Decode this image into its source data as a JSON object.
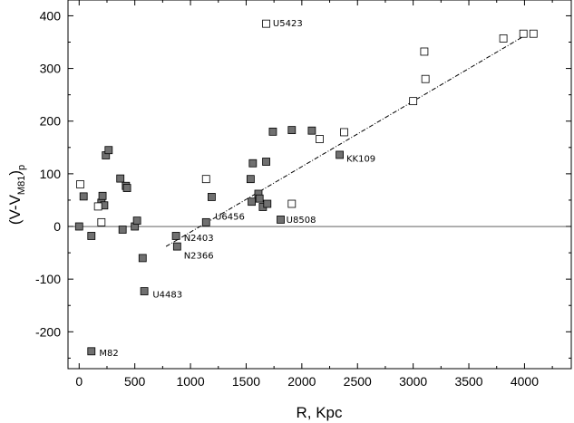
{
  "chart_data": {
    "type": "scatter",
    "title": "",
    "xlabel": "R, Kpc",
    "ylabel": {
      "main": "(V-V",
      "sub": "M81",
      "close": ")",
      "sub2": "p"
    },
    "xlim": [
      -100,
      4420
    ],
    "ylim": [
      -270,
      430
    ],
    "xticks": [
      0,
      500,
      1000,
      1500,
      2000,
      2500,
      3000,
      3500,
      4000
    ],
    "yticks": [
      -200,
      -100,
      0,
      100,
      200,
      300,
      400
    ],
    "grid": false,
    "legend": "none",
    "colors": {
      "filled": "#707070",
      "open": "#ffffff",
      "stroke": "#000000"
    },
    "series": [
      {
        "marker": "filled-square",
        "points": [
          {
            "x": 0,
            "y": 0
          },
          {
            "x": 40,
            "y": 57
          },
          {
            "x": 110,
            "y": -18
          },
          {
            "x": 200,
            "y": 45
          },
          {
            "x": 210,
            "y": 58
          },
          {
            "x": 225,
            "y": 40
          },
          {
            "x": 240,
            "y": 135
          },
          {
            "x": 265,
            "y": 145
          },
          {
            "x": 370,
            "y": 91
          },
          {
            "x": 390,
            "y": -6
          },
          {
            "x": 420,
            "y": 77
          },
          {
            "x": 430,
            "y": 73
          },
          {
            "x": 500,
            "y": 0
          },
          {
            "x": 520,
            "y": 11
          },
          {
            "x": 570,
            "y": -60
          },
          {
            "x": 585,
            "y": -123
          },
          {
            "x": 870,
            "y": -18
          },
          {
            "x": 880,
            "y": -38
          },
          {
            "x": 1140,
            "y": 8
          },
          {
            "x": 1190,
            "y": 56
          },
          {
            "x": 1540,
            "y": 90
          },
          {
            "x": 1550,
            "y": 47
          },
          {
            "x": 1560,
            "y": 120
          },
          {
            "x": 1610,
            "y": 62
          },
          {
            "x": 1620,
            "y": 53
          },
          {
            "x": 1650,
            "y": 37
          },
          {
            "x": 1680,
            "y": 123
          },
          {
            "x": 1690,
            "y": 43
          },
          {
            "x": 1740,
            "y": 180
          },
          {
            "x": 1810,
            "y": 13
          },
          {
            "x": 1910,
            "y": 183
          },
          {
            "x": 2090,
            "y": 182
          },
          {
            "x": 2340,
            "y": 136
          },
          {
            "x": 110,
            "y": -237
          }
        ]
      },
      {
        "marker": "open-square",
        "points": [
          {
            "x": 10,
            "y": 80
          },
          {
            "x": 170,
            "y": 38
          },
          {
            "x": 200,
            "y": 8
          },
          {
            "x": 1140,
            "y": 90
          },
          {
            "x": 1680,
            "y": 385
          },
          {
            "x": 1910,
            "y": 43
          },
          {
            "x": 2160,
            "y": 166
          },
          {
            "x": 2380,
            "y": 179
          },
          {
            "x": 3000,
            "y": 238
          },
          {
            "x": 3100,
            "y": 332
          },
          {
            "x": 3110,
            "y": 280
          },
          {
            "x": 3810,
            "y": 357
          },
          {
            "x": 3990,
            "y": 366
          },
          {
            "x": 4080,
            "y": 366
          }
        ]
      }
    ],
    "fit_line": {
      "x": [
        780,
        4000
      ],
      "y": [
        -38,
        362
      ]
    },
    "zero_line": 0,
    "annotations": [
      {
        "text": "U5423",
        "x": 1740,
        "y": 385
      },
      {
        "text": "KK109",
        "x": 2400,
        "y": 128
      },
      {
        "text": "U6456",
        "x": 1220,
        "y": 18
      },
      {
        "text": "U8508",
        "x": 1860,
        "y": 12
      },
      {
        "text": "N2403",
        "x": 940,
        "y": -22
      },
      {
        "text": "N2366",
        "x": 940,
        "y": -56
      },
      {
        "text": "U4483",
        "x": 660,
        "y": -130
      },
      {
        "text": "M82",
        "x": 180,
        "y": -241
      }
    ]
  }
}
